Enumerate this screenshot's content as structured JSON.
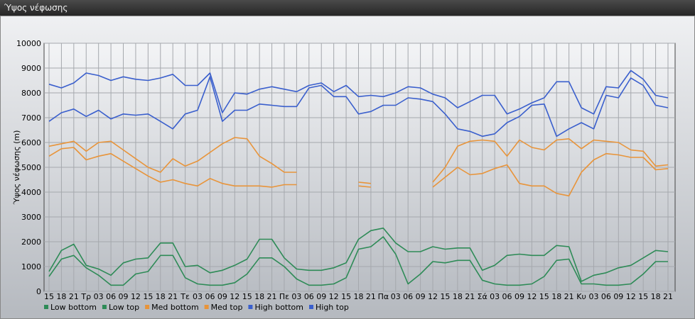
{
  "window": {
    "title": "Ύψος νέφωσης"
  },
  "chart_data": {
    "type": "line",
    "ylabel": "Ύψος νέφωσης (m)",
    "ylim": [
      0,
      10000
    ],
    "yticks": [
      0,
      1000,
      2000,
      3000,
      4000,
      5000,
      6000,
      7000,
      8000,
      9000,
      10000
    ],
    "grid": true,
    "legend_position": "bottom",
    "categories": [
      "15",
      "18",
      "21",
      "Τρ",
      "03",
      "06",
      "09",
      "12",
      "15",
      "18",
      "21",
      "Τε",
      "03",
      "06",
      "09",
      "12",
      "15",
      "18",
      "21",
      "Πε",
      "03",
      "06",
      "09",
      "12",
      "15",
      "18",
      "21",
      "Πα",
      "03",
      "06",
      "09",
      "12",
      "15",
      "18",
      "21",
      "Σά",
      "03",
      "06",
      "09",
      "12",
      "15",
      "18",
      "21",
      "Κυ",
      "03",
      "06",
      "09",
      "12",
      "15",
      "18",
      "21"
    ],
    "colors": {
      "low": "#2e8b57",
      "med": "#e8943a",
      "high": "#3a5fcd"
    },
    "series": [
      {
        "name": "Low bottom",
        "color": "#2e8b57",
        "values": [
          600,
          1300,
          1450,
          950,
          650,
          250,
          250,
          700,
          800,
          1450,
          1450,
          550,
          300,
          250,
          250,
          350,
          700,
          1350,
          1350,
          1000,
          500,
          250,
          250,
          300,
          550,
          1700,
          1800,
          2200,
          1500,
          300,
          700,
          1200,
          1150,
          1250,
          1250,
          450,
          300,
          250,
          250,
          300,
          600,
          1250,
          1300,
          300,
          300,
          250,
          250,
          300,
          700,
          1200,
          1200
        ]
      },
      {
        "name": "Low top",
        "color": "#2e8b57",
        "values": [
          800,
          1650,
          1900,
          1050,
          900,
          650,
          1150,
          1300,
          1350,
          1950,
          1950,
          1000,
          1050,
          750,
          850,
          1050,
          1300,
          2100,
          2100,
          1350,
          900,
          850,
          850,
          950,
          1150,
          2100,
          2450,
          2550,
          1950,
          1600,
          1600,
          1800,
          1700,
          1750,
          1750,
          850,
          1050,
          1450,
          1500,
          1450,
          1450,
          1850,
          1800,
          400,
          650,
          750,
          950,
          1050,
          1350,
          1650,
          1600
        ]
      },
      {
        "name": "Med bottom",
        "color": "#e8943a",
        "values": [
          5450,
          5750,
          5800,
          5300,
          5450,
          5550,
          5250,
          4950,
          4650,
          4400,
          4500,
          4350,
          4250,
          4550,
          4350,
          4250,
          4250,
          4250,
          4200,
          4300,
          4300,
          null,
          null,
          null,
          null,
          4250,
          4200,
          null,
          null,
          null,
          null,
          4200,
          4600,
          5000,
          4700,
          4750,
          4950,
          5100,
          4350,
          4250,
          4250,
          3950,
          3850,
          4800,
          5300,
          5550,
          5500,
          5400,
          5400,
          4900,
          4950
        ]
      },
      {
        "name": "Med top",
        "color": "#e8943a",
        "values": [
          5850,
          5950,
          6050,
          5650,
          6000,
          6050,
          5700,
          5350,
          5000,
          4800,
          5350,
          5050,
          5250,
          5600,
          5950,
          6200,
          6150,
          5450,
          5150,
          4800,
          4800,
          null,
          null,
          null,
          null,
          4400,
          4350,
          null,
          null,
          null,
          null,
          4400,
          5000,
          5850,
          6050,
          6100,
          6050,
          5450,
          6100,
          5800,
          5700,
          6100,
          6150,
          5750,
          6100,
          6050,
          6000,
          5700,
          5650,
          5050,
          5100
        ]
      },
      {
        "name": "High bottom",
        "color": "#3a5fcd",
        "values": [
          6850,
          7200,
          7350,
          7050,
          7300,
          6950,
          7150,
          7100,
          7150,
          6850,
          6550,
          7150,
          7300,
          8650,
          6850,
          7300,
          7300,
          7550,
          7500,
          7450,
          7450,
          8200,
          8300,
          7850,
          7850,
          7150,
          7250,
          7500,
          7500,
          7800,
          7750,
          7650,
          7150,
          6550,
          6450,
          6250,
          6350,
          6800,
          7050,
          7500,
          7550,
          6250,
          6550,
          6800,
          6550,
          7900,
          7800,
          8600,
          8300,
          7500,
          7400
        ]
      },
      {
        "name": "High top",
        "color": "#3a5fcd",
        "values": [
          8350,
          8200,
          8400,
          8800,
          8700,
          8500,
          8650,
          8550,
          8500,
          8600,
          8750,
          8300,
          8300,
          8800,
          7200,
          8000,
          7950,
          8150,
          8250,
          8150,
          8050,
          8300,
          8400,
          8050,
          8300,
          7850,
          7900,
          7850,
          8000,
          8250,
          8200,
          7950,
          7800,
          7400,
          7650,
          7900,
          7900,
          7150,
          7350,
          7600,
          7800,
          8450,
          8450,
          7400,
          7150,
          8250,
          8200,
          8900,
          8550,
          7900,
          7800
        ]
      }
    ]
  }
}
